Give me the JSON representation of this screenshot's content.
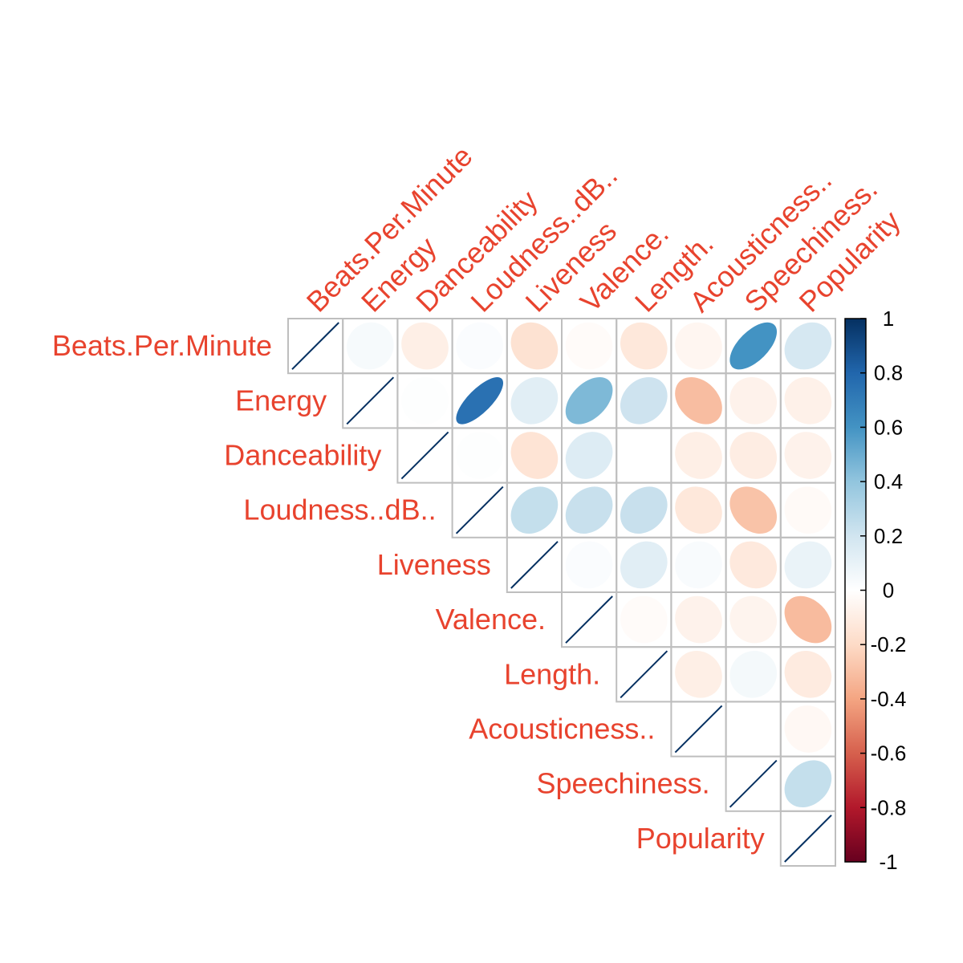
{
  "chart_data": {
    "type": "heatmap",
    "subtype": "correlation-upper-triangle-ellipse",
    "title": "",
    "variables": [
      "Beats.Per.Minute",
      "Energy",
      "Danceability",
      "Loudness..dB..",
      "Liveness",
      "Valence.",
      "Length.",
      "Acousticness..",
      "Speechiness.",
      "Popularity"
    ],
    "row_labels": [
      "Beats.Per.Minute",
      "Energy",
      "Danceability",
      "Loudness..dB..",
      "Liveness",
      "Valence.",
      "Length.",
      "Acousticness..",
      "Speechiness.",
      "Popularity"
    ],
    "matrix": [
      [
        1.0,
        0.04,
        -0.09,
        0.02,
        -0.16,
        -0.02,
        -0.13,
        -0.05,
        0.6,
        0.18
      ],
      [
        0.04,
        1.0,
        0.01,
        0.75,
        0.13,
        0.45,
        0.21,
        -0.31,
        -0.07,
        -0.08
      ],
      [
        -0.09,
        0.01,
        1.0,
        0.01,
        -0.15,
        0.15,
        0.0,
        -0.09,
        -0.1,
        -0.07
      ],
      [
        0.02,
        0.75,
        0.01,
        1.0,
        0.24,
        0.23,
        0.23,
        -0.13,
        -0.29,
        -0.03
      ],
      [
        -0.16,
        0.13,
        -0.15,
        0.24,
        1.0,
        0.02,
        0.13,
        0.03,
        -0.12,
        0.09
      ],
      [
        -0.02,
        0.45,
        0.15,
        0.23,
        0.02,
        1.0,
        -0.02,
        -0.07,
        -0.06,
        -0.32
      ],
      [
        -0.13,
        0.21,
        0.0,
        0.23,
        0.13,
        -0.02,
        1.0,
        -0.09,
        0.05,
        -0.11
      ],
      [
        -0.05,
        -0.31,
        -0.09,
        -0.13,
        0.03,
        -0.07,
        -0.09,
        1.0,
        0.0,
        -0.04
      ],
      [
        0.6,
        -0.07,
        -0.1,
        -0.29,
        -0.12,
        -0.06,
        0.05,
        0.0,
        1.0,
        0.24
      ],
      [
        0.18,
        -0.08,
        -0.07,
        -0.03,
        0.09,
        -0.32,
        -0.11,
        -0.04,
        0.24,
        1.0
      ]
    ],
    "color_scale": {
      "range": [
        -1,
        1
      ],
      "ticks": [
        1,
        0.8,
        0.6,
        0.4,
        0.2,
        0,
        -0.2,
        -0.4,
        -0.6,
        -0.8,
        -1
      ],
      "tick_labels": [
        "1",
        "0.8",
        "0.6",
        "0.4",
        "0.2",
        "0",
        "-0.2",
        "-0.4",
        "-0.6",
        "-0.8",
        "-1"
      ],
      "palette": [
        "#67001F",
        "#B2182B",
        "#D6604D",
        "#F4A582",
        "#FDDBC7",
        "#FFFFFF",
        "#D1E5F0",
        "#92C5DE",
        "#4393C3",
        "#2166AC",
        "#053061"
      ],
      "legend_position": "right"
    },
    "label_color": "#e8432e",
    "grid_color": "#bebebe",
    "diagonal_line_color": "#053061",
    "grid": true
  }
}
